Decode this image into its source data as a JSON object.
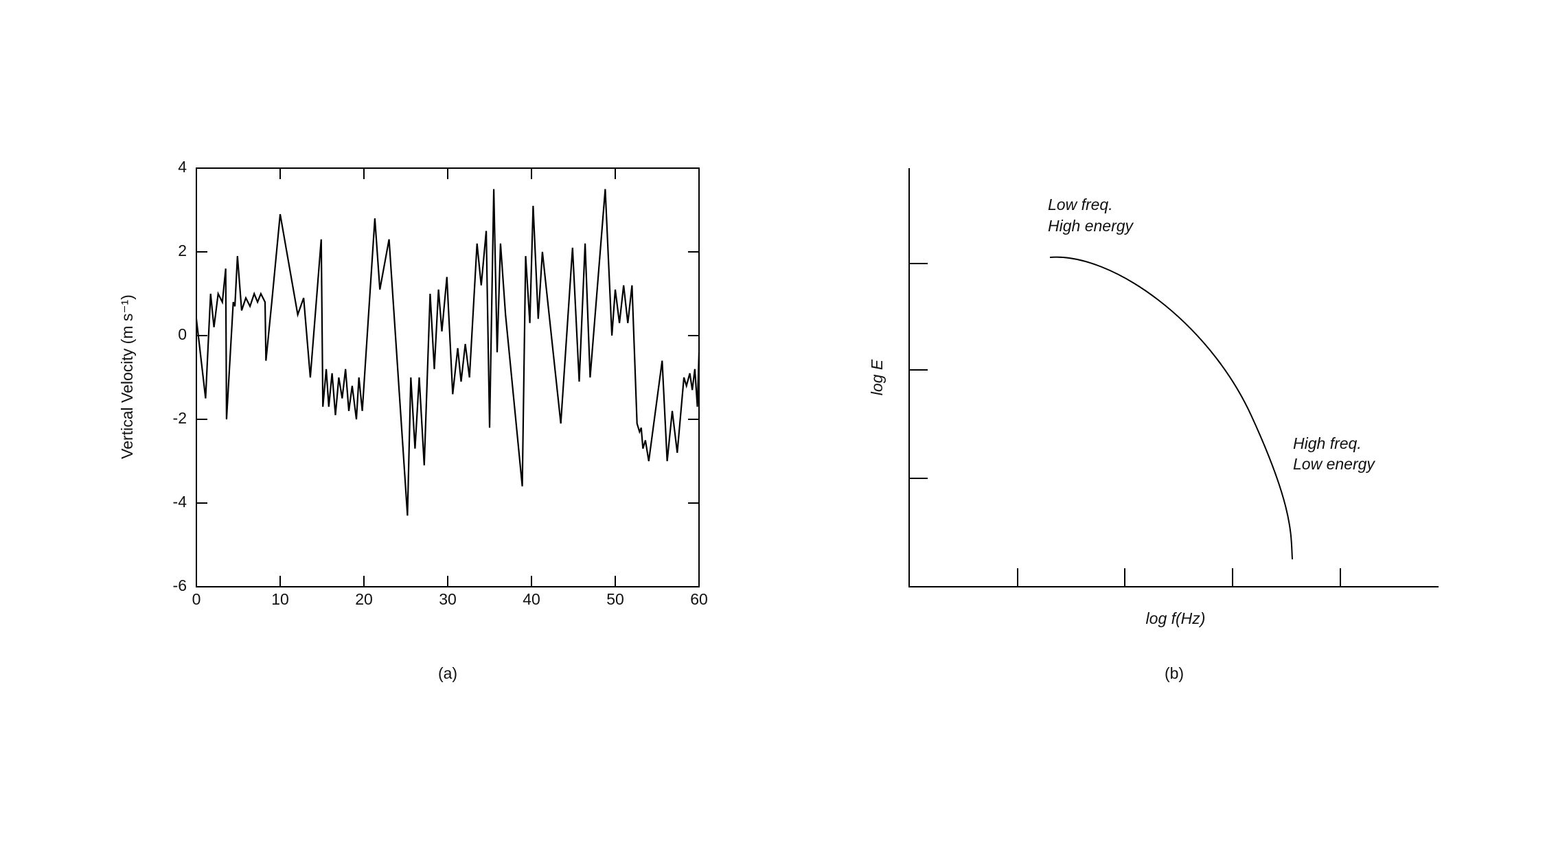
{
  "chart_data": [
    {
      "type": "line",
      "y_label": "Vertical Velocity (m s⁻¹)",
      "caption": "(a)",
      "x": [
        0,
        1.1,
        1.7,
        2.1,
        2.6,
        3.1,
        3.5,
        3.6,
        4.4,
        4.6,
        4.9,
        5.4,
        5.9,
        6.4,
        6.9,
        7.3,
        7.7,
        8.2,
        8.3,
        9.0,
        10.0,
        12.1,
        12.8,
        13.6,
        14.9,
        15.1,
        15.5,
        15.8,
        16.2,
        16.6,
        17.0,
        17.4,
        17.8,
        18.2,
        18.6,
        19.1,
        19.4,
        19.8,
        21.3,
        21.9,
        23.0,
        25.2,
        25.6,
        26.1,
        26.6,
        27.2,
        27.9,
        28.4,
        28.9,
        29.3,
        29.9,
        30.6,
        31.2,
        31.6,
        32.1,
        32.6,
        33.5,
        34.0,
        34.6,
        35.0,
        35.5,
        35.9,
        36.3,
        36.9,
        38.9,
        39.3,
        39.8,
        40.2,
        40.8,
        41.3,
        43.5,
        44.9,
        45.7,
        46.4,
        47.0,
        48.8,
        49.6,
        50.0,
        50.5,
        51.0,
        51.5,
        52.0,
        52.6,
        52.9,
        53.1,
        53.3,
        53.6,
        54.0,
        55.6,
        56.2,
        56.8,
        57.4,
        58.2,
        58.5,
        58.9,
        59.2,
        59.5,
        59.8,
        60
      ],
      "series": [
        {
          "color": "#000000",
          "values": [
            0.4,
            -1.5,
            1.0,
            0.2,
            1.0,
            0.8,
            1.6,
            -2.0,
            0.8,
            0.7,
            1.9,
            0.6,
            0.9,
            0.7,
            1.0,
            0.8,
            1.0,
            0.8,
            -0.6,
            0.8,
            2.9,
            0.5,
            0.9,
            -1.0,
            2.3,
            -1.7,
            -0.8,
            -1.7,
            -0.9,
            -1.9,
            -1.0,
            -1.5,
            -0.8,
            -1.8,
            -1.2,
            -2.0,
            -1.0,
            -1.8,
            2.8,
            1.1,
            2.3,
            -4.3,
            -1.0,
            -2.7,
            -1.0,
            -3.1,
            1.0,
            -0.8,
            1.1,
            0.1,
            1.4,
            -1.4,
            -0.3,
            -1.1,
            -0.2,
            -1.0,
            2.2,
            1.2,
            2.5,
            -2.2,
            3.5,
            -0.4,
            2.2,
            0.5,
            -3.6,
            1.9,
            0.3,
            3.1,
            0.4,
            2.0,
            -2.1,
            2.1,
            -1.1,
            2.2,
            -1.0,
            3.5,
            0,
            1.1,
            0.3,
            1.2,
            0.3,
            1.2,
            -2.1,
            -2.3,
            -2.2,
            -2.7,
            -2.5,
            -3.0,
            -0.6,
            -3.0,
            -1.8,
            -2.8,
            -1.0,
            -1.2,
            -0.9,
            -1.3,
            -0.8,
            -1.7,
            -0.4
          ]
        }
      ],
      "xlim": [
        0,
        60
      ],
      "ylim": [
        -6,
        4
      ],
      "xticks": [
        0,
        10,
        20,
        30,
        40,
        50,
        60
      ],
      "yticks": [
        -6,
        -4,
        -2,
        0,
        2,
        4
      ]
    },
    {
      "type": "schematic",
      "caption": "(b)",
      "x_label": "log f(Hz)",
      "y_label": "log E",
      "annotations": [
        "Low freq.",
        "High energy",
        "High freq.",
        "Low energy"
      ]
    }
  ]
}
